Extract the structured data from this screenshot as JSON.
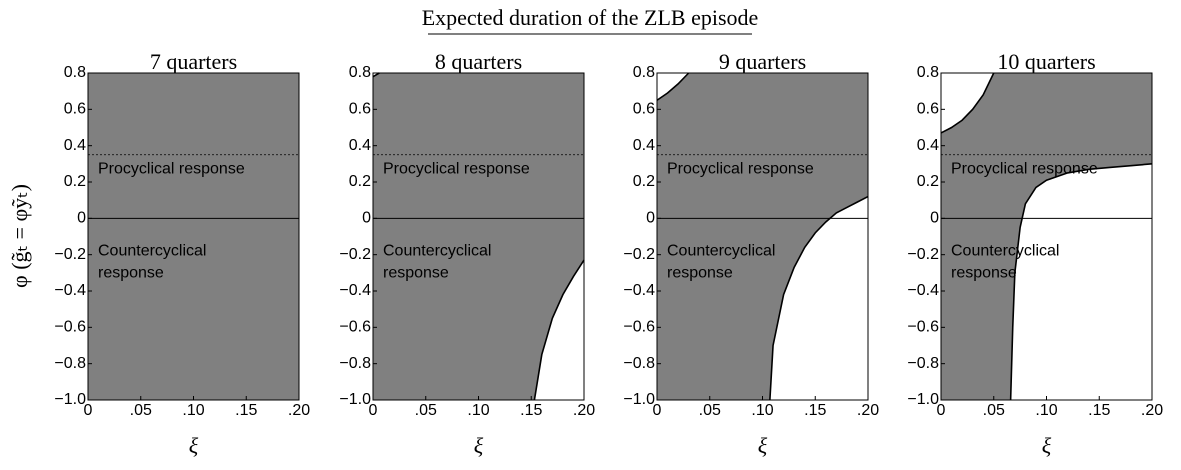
{
  "title": "Expected duration of the ZLB episode",
  "chart_data": [
    {
      "type": "region",
      "subtitle": "7 quarters",
      "xlabel": "ξ",
      "ylabel": "φ (g̃ₜ = φỹₜ)",
      "xlim": [
        0,
        0.2
      ],
      "ylim": [
        -1,
        0.8
      ],
      "xticks": [
        0,
        {
          "value": 0.05,
          "label": ".05"
        },
        {
          "value": 0.1,
          "label": ".10"
        },
        {
          "value": 0.15,
          "label": ".15"
        },
        {
          "value": 0.2,
          "label": ".20"
        }
      ],
      "yticks": [
        {
          "value": -1,
          "label": "−1.0"
        },
        {
          "value": -0.8,
          "label": "−0.8"
        },
        {
          "value": -0.6,
          "label": "−0.6"
        },
        {
          "value": -0.4,
          "label": "−0.4"
        },
        {
          "value": -0.2,
          "label": "−0.2"
        },
        0,
        0.2,
        0.4,
        0.6,
        0.8
      ],
      "area_color": "#808080",
      "region_color": "#ffffff",
      "dashed_line": 0.35,
      "annotations": [
        "Procyclical response",
        [
          "Countercyclical",
          "response"
        ]
      ],
      "regions": []
    },
    {
      "type": "region",
      "subtitle": "8 quarters",
      "xlabel": "ξ",
      "xlim": [
        0,
        0.2
      ],
      "ylim": [
        -1,
        0.8
      ],
      "xticks": [
        0,
        {
          "value": 0.05,
          "label": ".05"
        },
        {
          "value": 0.1,
          "label": ".10"
        },
        {
          "value": 0.15,
          "label": ".15"
        },
        {
          "value": 0.2,
          "label": ".20"
        }
      ],
      "yticks": [
        {
          "value": -1,
          "label": "−1.0"
        },
        {
          "value": -0.8,
          "label": "−0.8"
        },
        {
          "value": -0.6,
          "label": "−0.6"
        },
        {
          "value": -0.4,
          "label": "−0.4"
        },
        {
          "value": -0.2,
          "label": "−0.2"
        },
        0,
        0.2,
        0.4,
        0.6,
        0.8
      ],
      "area_color": "#808080",
      "region_color": "#ffffff",
      "dashed_line": 0.35,
      "annotations": [
        "Procyclical response",
        [
          "Countercyclical",
          "response"
        ]
      ],
      "regions": [
        {
          "corner": "top-left",
          "x": [
            0,
            0.006
          ],
          "y": [
            0.78,
            0.8
          ]
        },
        {
          "corner": "bottom-right",
          "x": [
            0.153,
            0.16,
            0.17,
            0.18,
            0.19,
            0.2
          ],
          "y": [
            -1,
            -0.75,
            -0.55,
            -0.42,
            -0.32,
            -0.23
          ]
        }
      ]
    },
    {
      "type": "region",
      "subtitle": "9 quarters",
      "xlabel": "ξ",
      "xlim": [
        0,
        0.2
      ],
      "ylim": [
        -1,
        0.8
      ],
      "xticks": [
        0,
        {
          "value": 0.05,
          "label": ".05"
        },
        {
          "value": 0.1,
          "label": ".10"
        },
        {
          "value": 0.15,
          "label": ".15"
        },
        {
          "value": 0.2,
          "label": ".20"
        }
      ],
      "yticks": [
        {
          "value": -1,
          "label": "−1.0"
        },
        {
          "value": -0.8,
          "label": "−0.8"
        },
        {
          "value": -0.6,
          "label": "−0.6"
        },
        {
          "value": -0.4,
          "label": "−0.4"
        },
        {
          "value": -0.2,
          "label": "−0.2"
        },
        0,
        0.2,
        0.4,
        0.6,
        0.8
      ],
      "area_color": "#808080",
      "region_color": "#ffffff",
      "dashed_line": 0.35,
      "annotations": [
        "Procyclical response",
        [
          "Countercyclical",
          "response"
        ]
      ],
      "regions": [
        {
          "corner": "top-left",
          "x": [
            0,
            0.01,
            0.02,
            0.03
          ],
          "y": [
            0.65,
            0.69,
            0.74,
            0.8
          ]
        },
        {
          "corner": "bottom-right",
          "x": [
            0.107,
            0.11,
            0.12,
            0.13,
            0.14,
            0.15,
            0.16,
            0.17,
            0.18,
            0.19,
            0.2
          ],
          "y": [
            -1,
            -0.7,
            -0.42,
            -0.27,
            -0.16,
            -0.08,
            -0.02,
            0.03,
            0.06,
            0.09,
            0.12
          ]
        }
      ]
    },
    {
      "type": "region",
      "subtitle": "10 quarters",
      "xlabel": "ξ",
      "xlim": [
        0,
        0.2
      ],
      "ylim": [
        -1,
        0.8
      ],
      "xticks": [
        0,
        {
          "value": 0.05,
          "label": ".05"
        },
        {
          "value": 0.1,
          "label": ".10"
        },
        {
          "value": 0.15,
          "label": ".15"
        },
        {
          "value": 0.2,
          "label": ".20"
        }
      ],
      "yticks": [
        {
          "value": -1,
          "label": "−1.0"
        },
        {
          "value": -0.8,
          "label": "−0.8"
        },
        {
          "value": -0.6,
          "label": "−0.6"
        },
        {
          "value": -0.4,
          "label": "−0.4"
        },
        {
          "value": -0.2,
          "label": "−0.2"
        },
        0,
        0.2,
        0.4,
        0.6,
        0.8
      ],
      "area_color": "#808080",
      "region_color": "#ffffff",
      "dashed_line": 0.35,
      "annotations": [
        "Procyclical response",
        [
          "Countercyclical",
          "response"
        ]
      ],
      "regions": [
        {
          "corner": "top-left",
          "x": [
            0,
            0.01,
            0.02,
            0.03,
            0.04,
            0.05
          ],
          "y": [
            0.47,
            0.5,
            0.54,
            0.6,
            0.68,
            0.8
          ]
        },
        {
          "corner": "bottom-right",
          "x": [
            0.066,
            0.068,
            0.07,
            0.075,
            0.08,
            0.09,
            0.1,
            0.12,
            0.14,
            0.16,
            0.18,
            0.2
          ],
          "y": [
            -1,
            -0.6,
            -0.3,
            -0.05,
            0.08,
            0.17,
            0.21,
            0.25,
            0.27,
            0.28,
            0.29,
            0.3
          ]
        }
      ]
    }
  ]
}
